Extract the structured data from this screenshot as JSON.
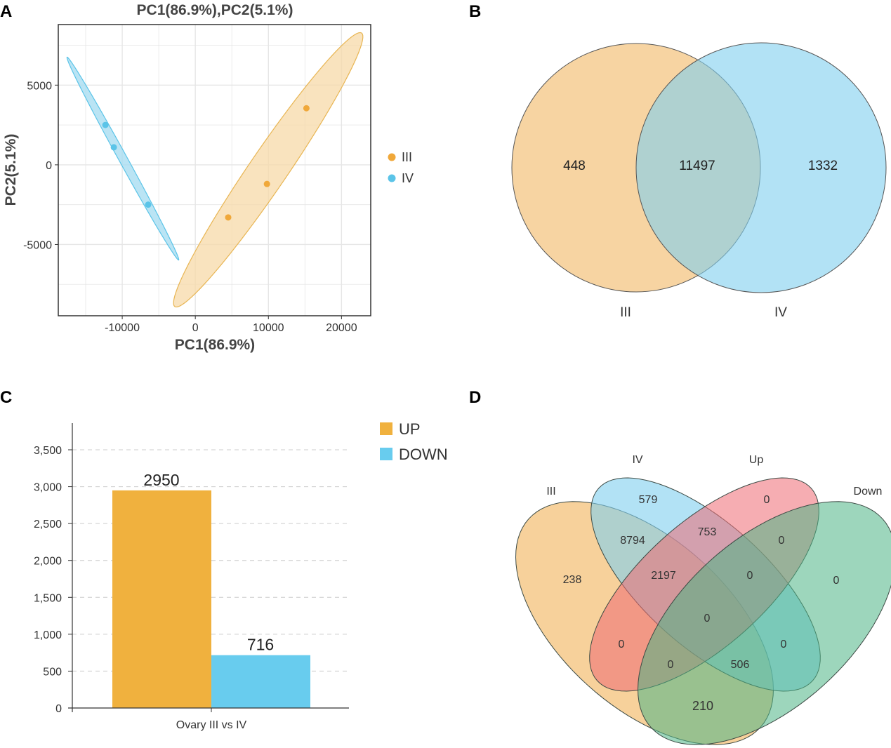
{
  "panel_labels": [
    "A",
    "B",
    "C",
    "D"
  ],
  "colors": {
    "III": "#F0A83A",
    "IV": "#5BC4E8",
    "III_fill": "#F7D9A8",
    "IV_fill": "#A9DDF1",
    "up": "#F0B13E",
    "down": "#68CCEE",
    "venn_III": "#F4C27A",
    "venn_IV": "#7FCFEF",
    "venn_up": "#EE6A72",
    "venn_down": "#4DB585"
  },
  "chart_data": [
    {
      "type": "scatter",
      "title": "PC1(86.9%),PC2(5.1%)",
      "xlabel": "PC1(86.9%)",
      "ylabel": "PC2(5.1%)",
      "xlim": [
        -18750,
        24000
      ],
      "ylim": [
        -9470,
        8800
      ],
      "xticks": [
        -10000,
        0,
        10000,
        20000
      ],
      "xtick_labels": [
        "-10000",
        "0",
        "10000",
        "20000"
      ],
      "yticks": [
        5000,
        0,
        -5000
      ],
      "ytick_labels": [
        "5000",
        "0",
        "-5000"
      ],
      "grid": true,
      "legend_position": "right",
      "series": [
        {
          "name": "III",
          "points": [
            [
              4500,
              -3300
            ],
            [
              9800,
              -1200
            ],
            [
              15200,
              3550
            ]
          ]
        },
        {
          "name": "IV",
          "points": [
            [
              -12300,
              2500
            ],
            [
              -11150,
              1100
            ],
            [
              -6450,
              -2500
            ]
          ]
        }
      ]
    },
    {
      "type": "venn",
      "sets": [
        "III",
        "IV"
      ],
      "regions": {
        "III_only": "448",
        "both": "11497",
        "IV_only": "1332"
      }
    },
    {
      "type": "bar",
      "categories": [
        "Ovary III vs IV"
      ],
      "series": [
        {
          "name": "UP",
          "values": [
            2950
          ]
        },
        {
          "name": "DOWN",
          "values": [
            716
          ]
        }
      ],
      "value_labels": [
        "2950",
        "716"
      ],
      "ylim": [
        0,
        3500
      ],
      "yticks": [
        0,
        500,
        1000,
        1500,
        2000,
        2500,
        3000,
        3500
      ],
      "ytick_labels": [
        "0",
        "500",
        "1,000",
        "1,500",
        "2,000",
        "2,500",
        "3,000",
        "3,500"
      ],
      "grid": true,
      "legend_position": "top-right",
      "xlabel": "",
      "ylabel": ""
    },
    {
      "type": "venn",
      "sets": [
        "III",
        "IV",
        "Up",
        "Down"
      ],
      "regions": [
        "579",
        "0",
        "238",
        "0",
        "8794",
        "753",
        "0",
        "2197",
        "0",
        "0",
        "0",
        "0",
        "0",
        "506",
        "210"
      ]
    }
  ]
}
